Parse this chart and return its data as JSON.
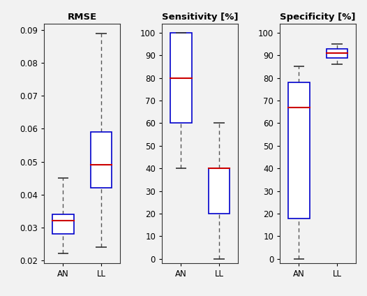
{
  "title1": "RMSE",
  "title2": "Sensitivity [%]",
  "title3": "Specificity [%]",
  "box_color": "#0000CC",
  "median_color": "#CC0000",
  "whisker_color": "#555555",
  "cap_color": "#333333",
  "bg_color": "#F2F2F2",
  "rmse": {
    "AN": {
      "q1": 0.028,
      "median": 0.032,
      "q3": 0.034,
      "whisker_low": 0.022,
      "whisker_high": 0.045
    },
    "LL": {
      "q1": 0.042,
      "median": 0.049,
      "q3": 0.059,
      "whisker_low": 0.024,
      "whisker_high": 0.089
    }
  },
  "sensitivity": {
    "AN": {
      "q1": 60,
      "median": 80,
      "q3": 100,
      "whisker_low": 40,
      "whisker_high": 100
    },
    "LL": {
      "q1": 20,
      "median": 40,
      "q3": 40,
      "whisker_low": 0,
      "whisker_high": 60
    }
  },
  "specificity": {
    "AN": {
      "q1": 18,
      "median": 67,
      "q3": 78,
      "whisker_low": 0,
      "whisker_high": 85
    },
    "LL": {
      "q1": 89,
      "median": 91,
      "q3": 93,
      "whisker_low": 86,
      "whisker_high": 95
    }
  },
  "rmse_ylim": [
    0.019,
    0.092
  ],
  "sens_ylim": [
    -2,
    104
  ],
  "spec_ylim": [
    -2,
    104
  ],
  "rmse_yticks": [
    0.02,
    0.03,
    0.04,
    0.05,
    0.06,
    0.07,
    0.08,
    0.09
  ],
  "sens_yticks": [
    0,
    10,
    20,
    30,
    40,
    50,
    60,
    70,
    80,
    90,
    100
  ],
  "spec_yticks": [
    0,
    10,
    20,
    30,
    40,
    50,
    60,
    70,
    80,
    90,
    100
  ]
}
